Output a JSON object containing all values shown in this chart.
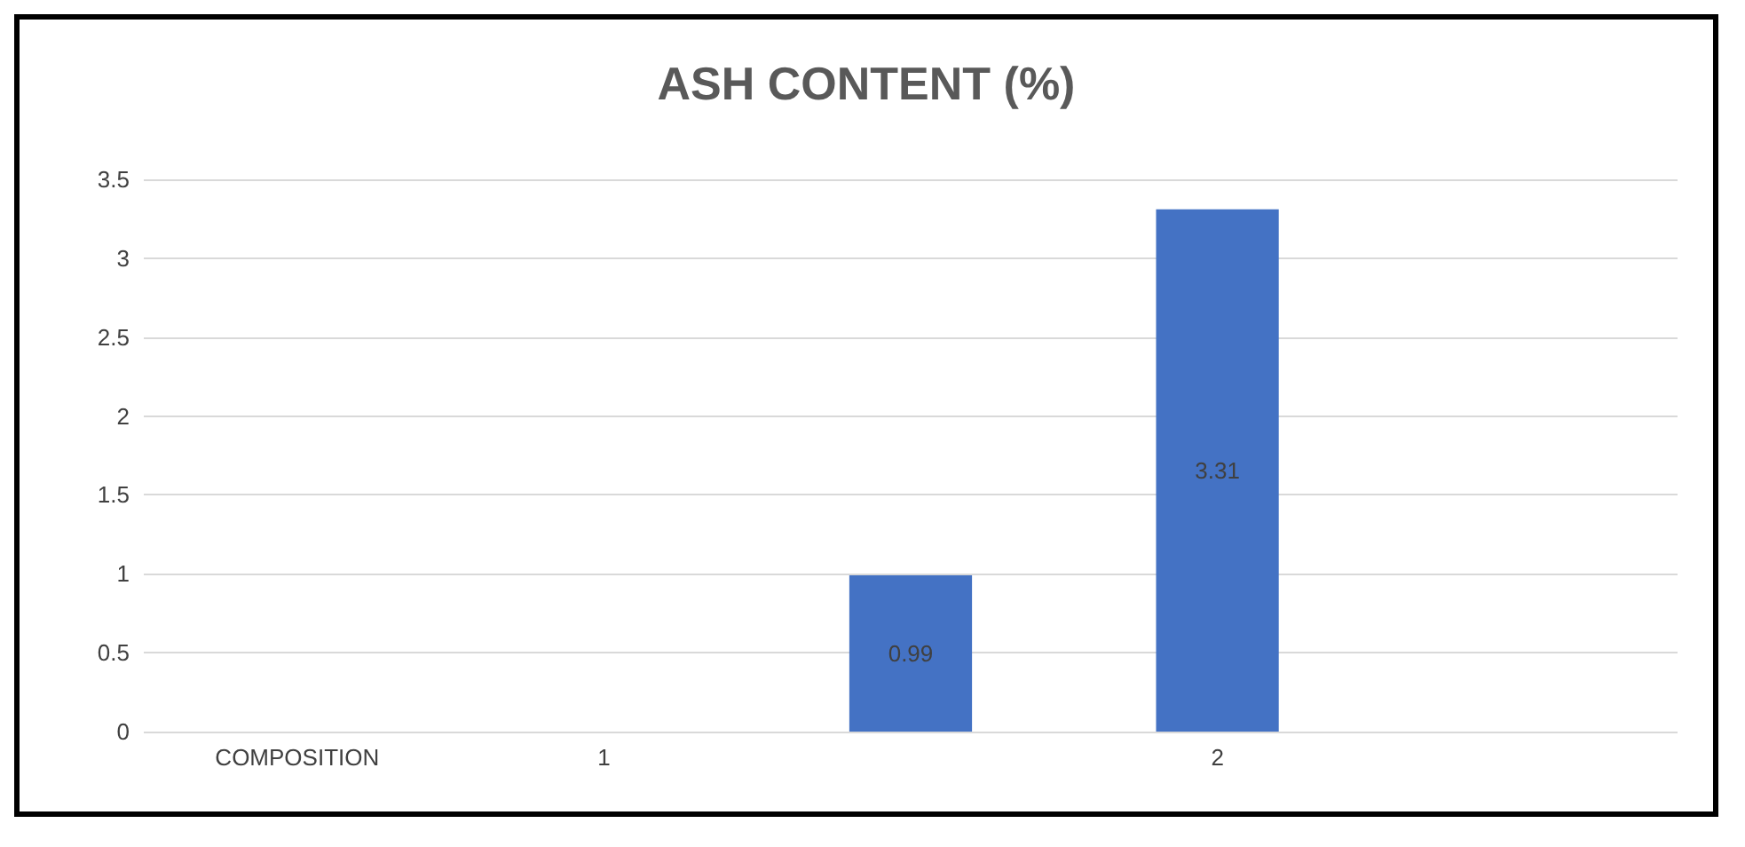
{
  "chart_data": {
    "type": "bar",
    "title": "ASH CONTENT (%)",
    "categories": [
      "COMPOSITION",
      "1",
      null,
      "2",
      null
    ],
    "values": [
      null,
      null,
      0.99,
      3.31,
      null
    ],
    "color": "#4472c4",
    "ylim": [
      0,
      3.5
    ],
    "yticks": [
      0,
      0.5,
      1,
      1.5,
      2,
      2.5,
      3,
      3.5
    ],
    "grid": "y",
    "data_labels": true
  }
}
